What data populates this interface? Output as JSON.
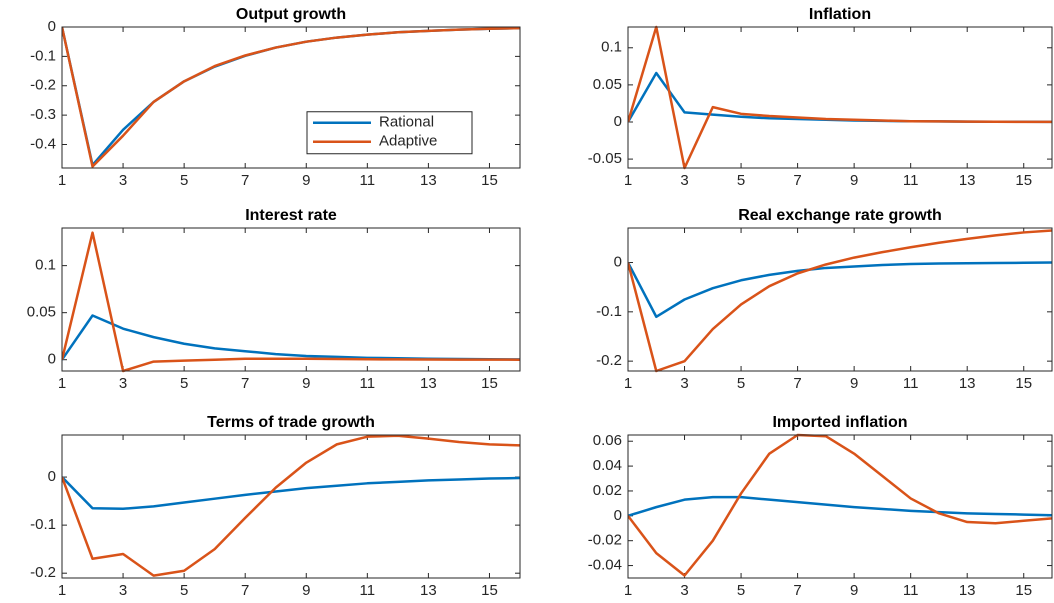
{
  "chart_data": [
    {
      "type": "line",
      "title": "Output growth",
      "x": [
        1,
        2,
        3,
        4,
        5,
        6,
        7,
        8,
        9,
        10,
        11,
        12,
        13,
        14,
        15,
        16
      ],
      "xlim": [
        1,
        16
      ],
      "xticks": [
        1,
        3,
        5,
        7,
        9,
        11,
        13,
        15
      ],
      "ylim": [
        -0.48,
        0
      ],
      "yticks": [
        -0.4,
        -0.3,
        -0.2,
        -0.1,
        0
      ],
      "legend": "east",
      "series": [
        {
          "name": "Rational",
          "color": "#0072BD",
          "values": [
            0,
            -0.47,
            -0.35,
            -0.255,
            -0.185,
            -0.135,
            -0.098,
            -0.07,
            -0.05,
            -0.036,
            -0.026,
            -0.018,
            -0.013,
            -0.009,
            -0.006,
            -0.004
          ]
        },
        {
          "name": "Adaptive",
          "color": "#D95319",
          "values": [
            0,
            -0.475,
            -0.37,
            -0.255,
            -0.185,
            -0.133,
            -0.097,
            -0.07,
            -0.05,
            -0.036,
            -0.026,
            -0.018,
            -0.013,
            -0.009,
            -0.006,
            -0.004
          ]
        }
      ]
    },
    {
      "type": "line",
      "title": "Inflation",
      "x": [
        1,
        2,
        3,
        4,
        5,
        6,
        7,
        8,
        9,
        10,
        11,
        12,
        13,
        14,
        15,
        16
      ],
      "xlim": [
        1,
        16
      ],
      "xticks": [
        1,
        3,
        5,
        7,
        9,
        11,
        13,
        15
      ],
      "ylim": [
        -0.062,
        0.128
      ],
      "yticks": [
        -0.05,
        0,
        0.05,
        0.1
      ],
      "series": [
        {
          "name": "Rational",
          "color": "#0072BD",
          "values": [
            0,
            0.066,
            0.013,
            0.01,
            0.007,
            0.005,
            0.004,
            0.003,
            0.002,
            0.0015,
            0.001,
            0.0008,
            0.0005,
            0.0004,
            0.0003,
            0.0002
          ]
        },
        {
          "name": "Adaptive",
          "color": "#D95319",
          "values": [
            0,
            0.128,
            -0.062,
            0.02,
            0.011,
            0.008,
            0.006,
            0.004,
            0.003,
            0.002,
            0.001,
            0.0008,
            0.0005,
            0.0003,
            0.0002,
            0.0001
          ]
        }
      ]
    },
    {
      "type": "line",
      "title": "Interest rate",
      "x": [
        1,
        2,
        3,
        4,
        5,
        6,
        7,
        8,
        9,
        10,
        11,
        12,
        13,
        14,
        15,
        16
      ],
      "xlim": [
        1,
        16
      ],
      "xticks": [
        1,
        3,
        5,
        7,
        9,
        11,
        13,
        15
      ],
      "ylim": [
        -0.012,
        0.14
      ],
      "yticks": [
        0,
        0.05,
        0.1
      ],
      "series": [
        {
          "name": "Rational",
          "color": "#0072BD",
          "values": [
            0,
            0.047,
            0.033,
            0.024,
            0.017,
            0.012,
            0.009,
            0.006,
            0.004,
            0.003,
            0.002,
            0.0015,
            0.001,
            0.0007,
            0.0005,
            0.0003
          ]
        },
        {
          "name": "Adaptive",
          "color": "#D95319",
          "values": [
            0,
            0.135,
            -0.012,
            -0.002,
            -0.001,
            0,
            0.001,
            0.001,
            0.001,
            0.0008,
            0.0005,
            0.0003,
            0.0002,
            0.0001,
            0.0001,
            0
          ]
        }
      ]
    },
    {
      "type": "line",
      "title": "Real exchange rate growth",
      "x": [
        1,
        2,
        3,
        4,
        5,
        6,
        7,
        8,
        9,
        10,
        11,
        12,
        13,
        14,
        15,
        16
      ],
      "xlim": [
        1,
        16
      ],
      "xticks": [
        1,
        3,
        5,
        7,
        9,
        11,
        13,
        15
      ],
      "ylim": [
        -0.22,
        0.07
      ],
      "yticks": [
        -0.2,
        -0.1,
        0
      ],
      "series": [
        {
          "name": "Rational",
          "color": "#0072BD",
          "values": [
            0,
            -0.11,
            -0.075,
            -0.052,
            -0.036,
            -0.025,
            -0.017,
            -0.011,
            -0.008,
            -0.005,
            -0.003,
            -0.002,
            -0.0015,
            -0.001,
            -0.0005,
            0
          ]
        },
        {
          "name": "Adaptive",
          "color": "#D95319",
          "values": [
            0,
            -0.22,
            -0.2,
            -0.135,
            -0.085,
            -0.048,
            -0.022,
            -0.004,
            0.01,
            0.021,
            0.031,
            0.04,
            0.048,
            0.055,
            0.061,
            0.065
          ]
        }
      ]
    },
    {
      "type": "line",
      "title": "Terms of trade growth",
      "x": [
        1,
        2,
        3,
        4,
        5,
        6,
        7,
        8,
        9,
        10,
        11,
        12,
        13,
        14,
        15,
        16
      ],
      "xlim": [
        1,
        16
      ],
      "xticks": [
        1,
        3,
        5,
        7,
        9,
        11,
        13,
        15
      ],
      "ylim": [
        -0.21,
        0.0875
      ],
      "yticks": [
        -0.2,
        -0.1,
        0
      ],
      "series": [
        {
          "name": "Rational",
          "color": "#0072BD",
          "values": [
            0,
            -0.065,
            -0.066,
            -0.061,
            -0.053,
            -0.045,
            -0.037,
            -0.03,
            -0.023,
            -0.018,
            -0.013,
            -0.01,
            -0.007,
            -0.005,
            -0.003,
            -0.002
          ]
        },
        {
          "name": "Adaptive",
          "color": "#D95319",
          "values": [
            0,
            -0.17,
            -0.16,
            -0.205,
            -0.195,
            -0.15,
            -0.085,
            -0.022,
            0.03,
            0.068,
            0.084,
            0.086,
            0.08,
            0.073,
            0.068,
            0.066
          ]
        }
      ]
    },
    {
      "type": "line",
      "title": "Imported inflation",
      "x": [
        1,
        2,
        3,
        4,
        5,
        6,
        7,
        8,
        9,
        10,
        11,
        12,
        13,
        14,
        15,
        16
      ],
      "xlim": [
        1,
        16
      ],
      "xticks": [
        1,
        3,
        5,
        7,
        9,
        11,
        13,
        15
      ],
      "ylim": [
        -0.05,
        0.065
      ],
      "yticks": [
        -0.04,
        -0.02,
        0,
        0.02,
        0.04,
        0.06
      ],
      "series": [
        {
          "name": "Rational",
          "color": "#0072BD",
          "values": [
            0,
            0.007,
            0.013,
            0.015,
            0.015,
            0.013,
            0.011,
            0.009,
            0.007,
            0.0055,
            0.004,
            0.003,
            0.002,
            0.0015,
            0.001,
            0.0005
          ]
        },
        {
          "name": "Adaptive",
          "color": "#D95319",
          "values": [
            0,
            -0.03,
            -0.048,
            -0.02,
            0.018,
            0.05,
            0.065,
            0.064,
            0.05,
            0.032,
            0.014,
            0.002,
            -0.005,
            -0.006,
            -0.004,
            -0.002
          ]
        }
      ]
    }
  ]
}
